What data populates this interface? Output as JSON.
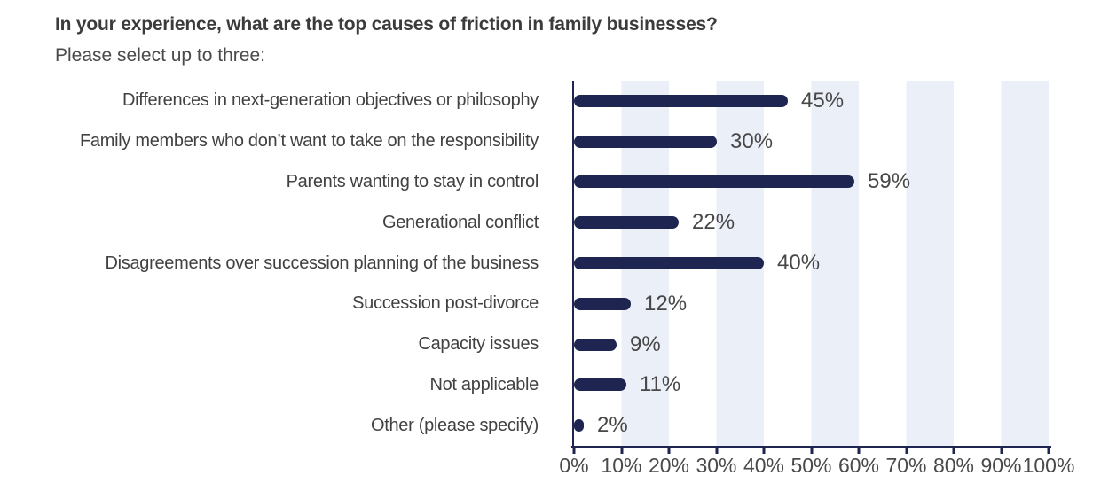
{
  "header": {
    "title": "In your experience, what are the top causes of friction in family businesses?",
    "subtitle": "Please select up to three:"
  },
  "chart_data": {
    "type": "bar",
    "orientation": "horizontal",
    "title": "In your experience, what are the top causes of friction in family businesses?",
    "subtitle": "Please select up to three:",
    "categories": [
      "Differences in next-generation objectives or philosophy",
      "Family members who don’t want to take on the responsibility",
      "Parents wanting to stay in control",
      "Generational conflict",
      "Disagreements over succession planning of the business",
      "Succession post-divorce",
      "Capacity issues",
      "Not applicable",
      "Other (please specify)"
    ],
    "values": [
      45,
      30,
      59,
      22,
      40,
      12,
      9,
      11,
      2
    ],
    "value_labels": [
      "45%",
      "30%",
      "59%",
      "22%",
      "40%",
      "12%",
      "9%",
      "11%",
      "2%"
    ],
    "x_ticks": [
      "0%",
      "10%",
      "20%",
      "30%",
      "40%",
      "50%",
      "60%",
      "70%",
      "80%",
      "90%",
      "100%"
    ],
    "xlim": [
      0,
      100
    ],
    "xlabel": "",
    "ylabel": "",
    "legend": "none",
    "background_bands": "alternating vertical light-blue bands at 10–20%, 30–40%, 50–60%, 70–80%, 90–100%",
    "colors": {
      "bar": "#1e2551",
      "stripe": "#eaeff8",
      "axis": "#1e2551",
      "text": "#414141",
      "title": "#3b3b3b"
    }
  }
}
